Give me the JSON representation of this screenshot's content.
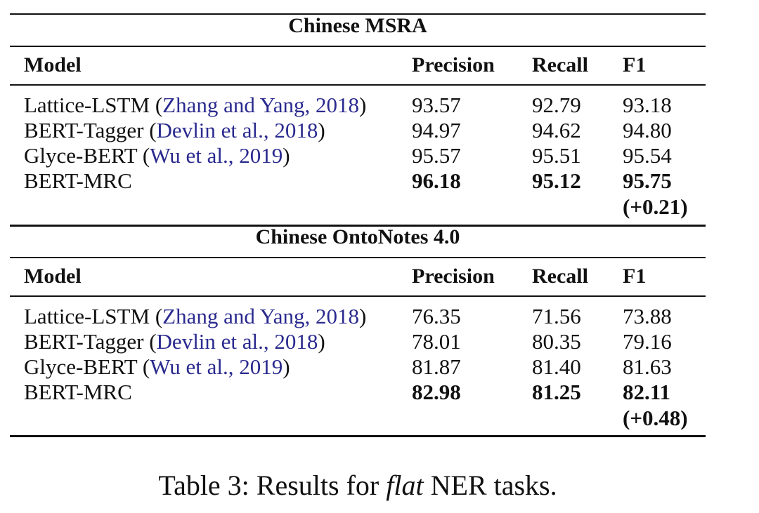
{
  "sections": [
    {
      "title": "Chinese MSRA",
      "headers": {
        "model": "Model",
        "precision": "Precision",
        "recall": "Recall",
        "f1": "F1"
      },
      "rows": [
        {
          "model": "Lattice-LSTM",
          "cite": "Zhang and Yang, 2018",
          "precision": "93.57",
          "recall": "92.79",
          "f1": "93.18"
        },
        {
          "model": "BERT-Tagger",
          "cite": "Devlin et al., 2018",
          "precision": "94.97",
          "recall": "94.62",
          "f1": "94.80"
        },
        {
          "model": "Glyce-BERT",
          "cite": "Wu et al., 2019",
          "precision": "95.57",
          "recall": "95.51",
          "f1": "95.54"
        },
        {
          "model": "BERT-MRC",
          "cite": "",
          "precision": "96.18",
          "recall": "95.12",
          "f1": "95.75",
          "f1_gain": "(+0.21)"
        }
      ]
    },
    {
      "title": "Chinese OntoNotes 4.0",
      "headers": {
        "model": "Model",
        "precision": "Precision",
        "recall": "Recall",
        "f1": "F1"
      },
      "rows": [
        {
          "model": "Lattice-LSTM",
          "cite": "Zhang and Yang, 2018",
          "precision": "76.35",
          "recall": "71.56",
          "f1": "73.88"
        },
        {
          "model": "BERT-Tagger",
          "cite": "Devlin et al., 2018",
          "precision": "78.01",
          "recall": "80.35",
          "f1": "79.16"
        },
        {
          "model": "Glyce-BERT",
          "cite": "Wu et al., 2019",
          "precision": "81.87",
          "recall": "81.40",
          "f1": "81.63"
        },
        {
          "model": "BERT-MRC",
          "cite": "",
          "precision": "82.98",
          "recall": "81.25",
          "f1": "82.11",
          "f1_gain": "(+0.48)"
        }
      ]
    }
  ],
  "caption": {
    "prefix": "Table 3: Results for ",
    "emph": "flat",
    "suffix": " NER tasks."
  }
}
